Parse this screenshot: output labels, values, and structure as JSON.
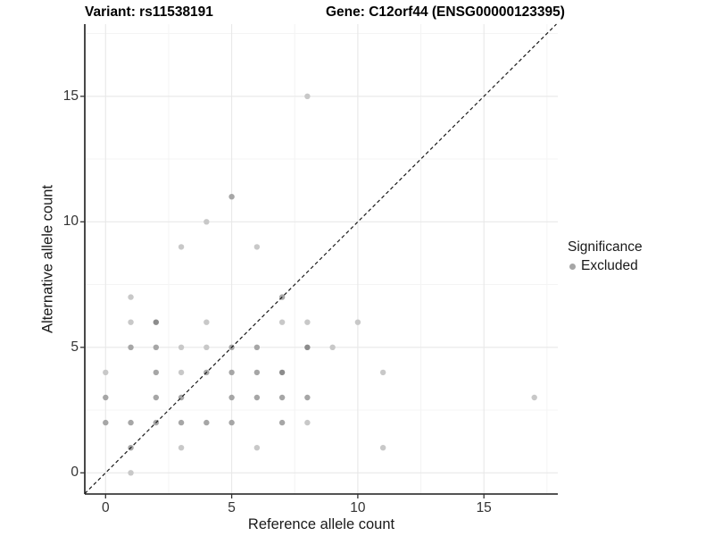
{
  "titles": {
    "variant": "Variant: rs11538191",
    "gene": "Gene: C12orf44 (ENSG00000123395)"
  },
  "axes": {
    "x": {
      "label": "Reference allele count",
      "ticks": [
        0,
        5,
        10,
        15
      ],
      "minor_ticks": [
        2.5,
        7.5,
        12.5,
        17.5
      ]
    },
    "y": {
      "label": "Alternative allele count",
      "ticks": [
        0,
        5,
        10,
        15
      ],
      "minor_ticks": [
        2.5,
        7.5,
        12.5,
        17.5
      ]
    }
  },
  "legend": {
    "title": "Significance",
    "items": [
      {
        "label": "Excluded",
        "color": "#a6a6a6"
      }
    ]
  },
  "colors": {
    "background": "#ffffff",
    "axis_line": "#1a1a1a",
    "grid_major": "#e8e8e8",
    "grid_minor": "#f4f4f4",
    "identity_line": "#1a1a1a",
    "shade_light": "#c8c8c8",
    "shade_medium": "#a6a6a6",
    "shade_dark": "#8c8c8c"
  },
  "chart_data": {
    "type": "scatter",
    "title": "Variant: rs11538191 — Gene: C12orf44 (ENSG00000123395)",
    "xlabel": "Reference allele count",
    "ylabel": "Alternative allele count",
    "xlim": [
      -0.85,
      17.9
    ],
    "ylim": [
      -0.85,
      17.9
    ],
    "grid": true,
    "legend_position": "right",
    "diagonal_reference_line": {
      "equation": "y = x",
      "style": "dashed"
    },
    "series": [
      {
        "name": "Excluded",
        "point_format": "[x, y, shade] where shade l=light m=medium d=dark (overplot opacity)",
        "points": [
          [
            1,
            0,
            "l"
          ],
          [
            1,
            1,
            "m"
          ],
          [
            3,
            1,
            "l"
          ],
          [
            6,
            1,
            "l"
          ],
          [
            11,
            1,
            "l"
          ],
          [
            0,
            2,
            "m"
          ],
          [
            1,
            2,
            "m"
          ],
          [
            2,
            2,
            "m"
          ],
          [
            3,
            2,
            "m"
          ],
          [
            4,
            2,
            "m"
          ],
          [
            5,
            2,
            "m"
          ],
          [
            7,
            2,
            "m"
          ],
          [
            8,
            2,
            "l"
          ],
          [
            0,
            3,
            "m"
          ],
          [
            2,
            3,
            "m"
          ],
          [
            3,
            3,
            "m"
          ],
          [
            5,
            3,
            "m"
          ],
          [
            6,
            3,
            "m"
          ],
          [
            7,
            3,
            "m"
          ],
          [
            8,
            3,
            "m"
          ],
          [
            17,
            3,
            "l"
          ],
          [
            0,
            4,
            "l"
          ],
          [
            2,
            4,
            "m"
          ],
          [
            3,
            4,
            "l"
          ],
          [
            4,
            4,
            "m"
          ],
          [
            5,
            4,
            "m"
          ],
          [
            6,
            4,
            "m"
          ],
          [
            7,
            4,
            "d"
          ],
          [
            11,
            4,
            "l"
          ],
          [
            1,
            5,
            "m"
          ],
          [
            2,
            5,
            "m"
          ],
          [
            3,
            5,
            "l"
          ],
          [
            4,
            5,
            "l"
          ],
          [
            5,
            5,
            "m"
          ],
          [
            6,
            5,
            "m"
          ],
          [
            8,
            5,
            "d"
          ],
          [
            9,
            5,
            "l"
          ],
          [
            1,
            6,
            "l"
          ],
          [
            2,
            6,
            "d"
          ],
          [
            4,
            6,
            "l"
          ],
          [
            7,
            6,
            "l"
          ],
          [
            8,
            6,
            "l"
          ],
          [
            10,
            6,
            "l"
          ],
          [
            1,
            7,
            "l"
          ],
          [
            7,
            7,
            "m"
          ],
          [
            3,
            9,
            "l"
          ],
          [
            6,
            9,
            "l"
          ],
          [
            4,
            10,
            "l"
          ],
          [
            5,
            11,
            "m"
          ],
          [
            8,
            15,
            "l"
          ]
        ]
      }
    ]
  }
}
